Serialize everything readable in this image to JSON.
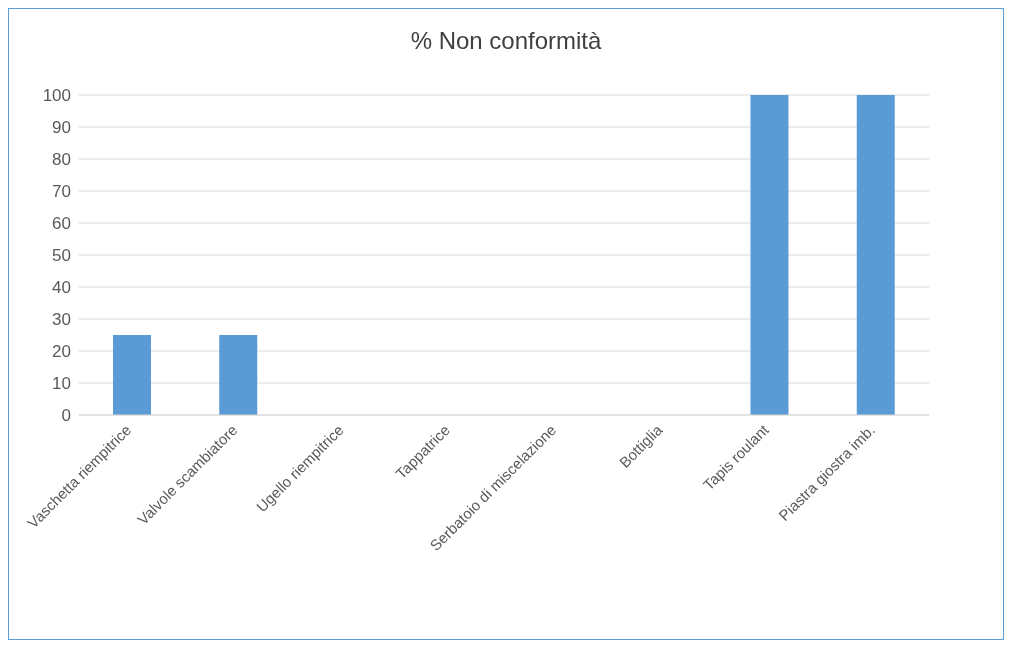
{
  "chart_data": {
    "type": "bar",
    "title": "% Non conformità",
    "categories": [
      "Vaschetta riempitrice",
      "Valvole scambiatore",
      "Ugello riempitrice",
      "Tappatrice",
      "Serbatoio di miscelazione",
      "Bottiglia",
      "Tapis roulant",
      "Piastra giostra imb."
    ],
    "values": [
      25,
      25,
      0,
      0,
      0,
      0,
      100,
      100
    ],
    "color": "#5b9bd5",
    "ylim": [
      0,
      100
    ],
    "yticks": [
      0,
      10,
      20,
      30,
      40,
      50,
      60,
      70,
      80,
      90,
      100
    ],
    "grid": "y",
    "legend": false
  }
}
